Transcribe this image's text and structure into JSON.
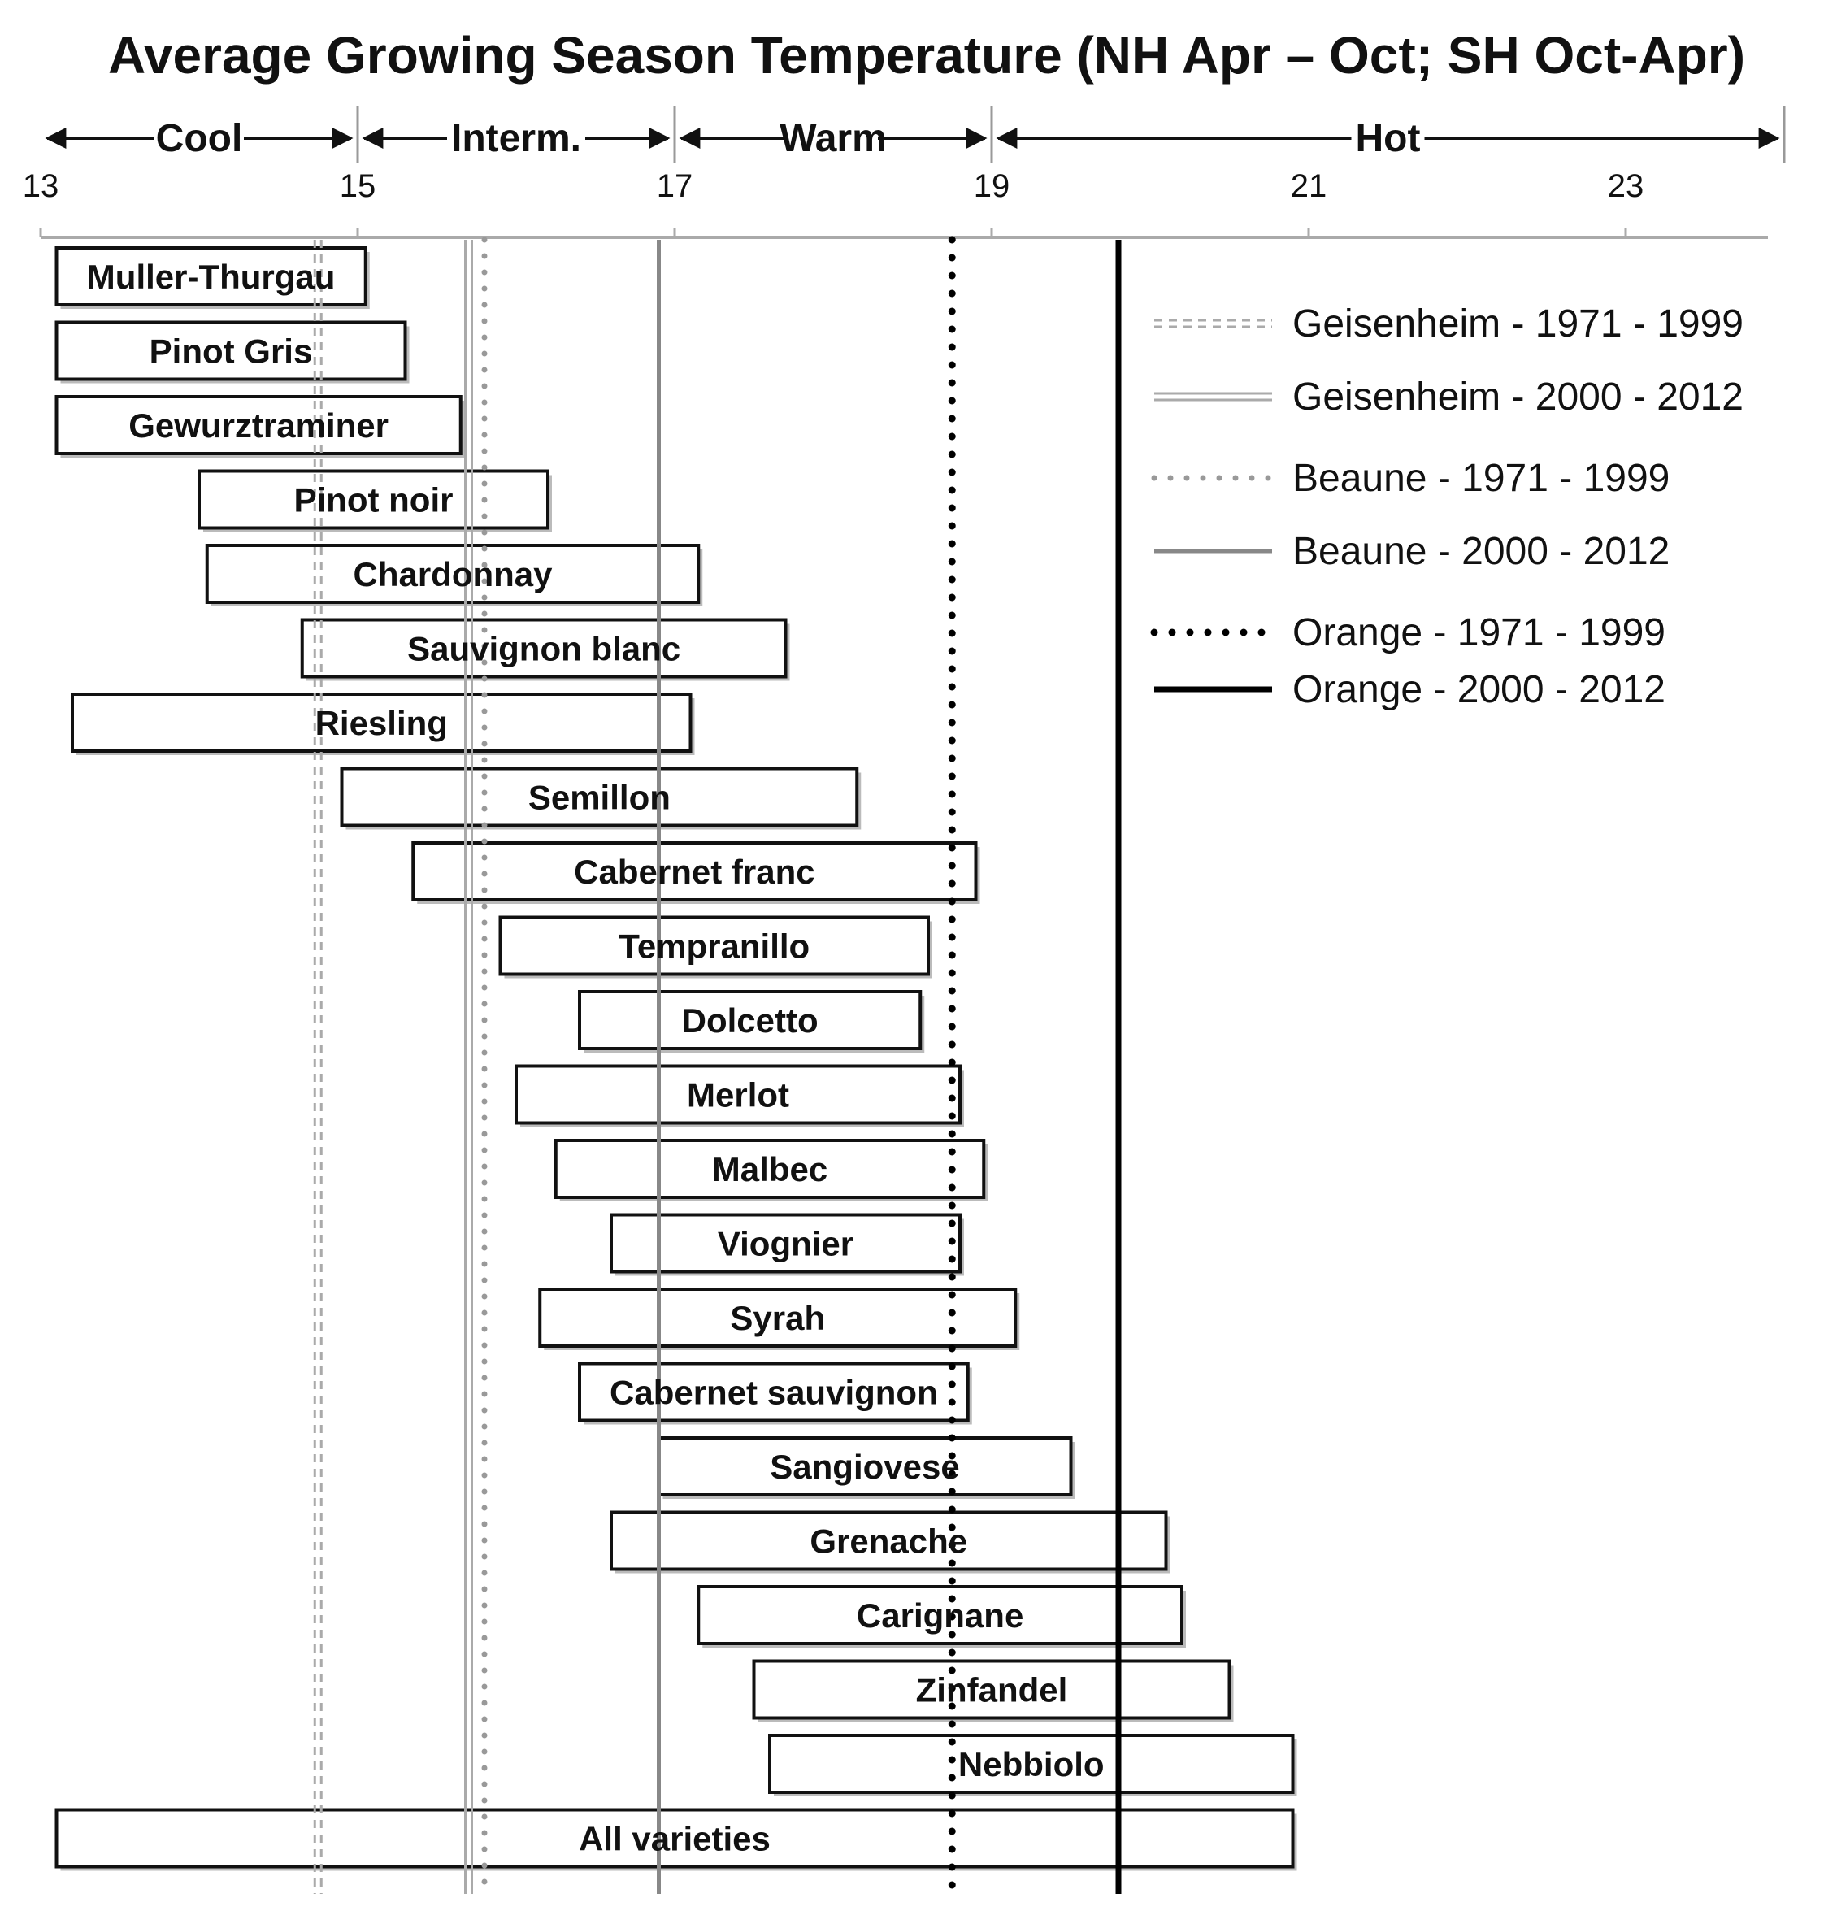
{
  "chart_data": {
    "type": "bar",
    "orientation": "horizontal-range",
    "title": "Average Growing Season Temperature (NH Apr – Oct; SH Oct-Apr)",
    "xlim": [
      13,
      24
    ],
    "x_ticks": [
      13,
      15,
      17,
      19,
      21,
      23
    ],
    "grid": false,
    "zones": [
      {
        "label": "Cool",
        "from": 13,
        "to": 15
      },
      {
        "label": "Interm.",
        "from": 15,
        "to": 17
      },
      {
        "label": "Warm",
        "from": 17,
        "to": 19
      },
      {
        "label": "Hot",
        "from": 19,
        "to": 24
      }
    ],
    "varieties": [
      {
        "name": "Muller-Thurgau",
        "min": 13.1,
        "max": 15.05
      },
      {
        "name": "Pinot Gris",
        "min": 13.1,
        "max": 15.3
      },
      {
        "name": "Gewurztraminer",
        "min": 13.1,
        "max": 15.65
      },
      {
        "name": "Pinot noir",
        "min": 14.0,
        "max": 16.2
      },
      {
        "name": "Chardonnay",
        "min": 14.05,
        "max": 17.15
      },
      {
        "name": "Sauvignon blanc",
        "min": 14.65,
        "max": 17.7
      },
      {
        "name": "Riesling",
        "min": 13.2,
        "max": 17.1
      },
      {
        "name": "Semillon",
        "min": 14.9,
        "max": 18.15
      },
      {
        "name": "Cabernet franc",
        "min": 15.35,
        "max": 18.9
      },
      {
        "name": "Tempranillo",
        "min": 15.9,
        "max": 18.6
      },
      {
        "name": "Dolcetto",
        "min": 16.4,
        "max": 18.55
      },
      {
        "name": "Merlot",
        "min": 16.0,
        "max": 18.8
      },
      {
        "name": "Malbec",
        "min": 16.25,
        "max": 18.95
      },
      {
        "name": "Viognier",
        "min": 16.6,
        "max": 18.8
      },
      {
        "name": "Syrah",
        "min": 16.15,
        "max": 19.15
      },
      {
        "name": "Cabernet sauvignon",
        "min": 16.4,
        "max": 18.85
      },
      {
        "name": "Sangiovese",
        "min": 16.9,
        "max": 19.5
      },
      {
        "name": "Grenache",
        "min": 16.6,
        "max": 20.1
      },
      {
        "name": "Carignane",
        "min": 17.15,
        "max": 20.2
      },
      {
        "name": "Zinfandel",
        "min": 17.5,
        "max": 20.5
      },
      {
        "name": "Nebbiolo",
        "min": 17.6,
        "max": 20.9
      },
      {
        "name": "All varieties",
        "min": 13.1,
        "max": 20.9
      }
    ],
    "series": [
      {
        "name": "Geisenheim - 1971 - 1999",
        "value": 14.75,
        "color": "#aaaaaa",
        "style": "double-dashed"
      },
      {
        "name": "Geisenheim - 2000 - 2012",
        "value": 15.7,
        "color": "#aaaaaa",
        "style": "double-solid"
      },
      {
        "name": "Beaune - 1971 - 1999",
        "value": 15.8,
        "color": "#999999",
        "style": "dotted"
      },
      {
        "name": "Beaune - 2000 - 2012",
        "value": 16.9,
        "color": "#888888",
        "style": "solid"
      },
      {
        "name": "Orange - 1971 - 1999",
        "value": 18.75,
        "color": "#000000",
        "style": "dotted"
      },
      {
        "name": "Orange - 2000 - 2012",
        "value": 19.8,
        "color": "#000000",
        "style": "solid"
      }
    ],
    "legend_position": "right"
  }
}
